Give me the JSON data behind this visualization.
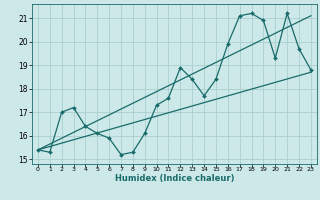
{
  "xlabel": "Humidex (Indice chaleur)",
  "xlim": [
    -0.5,
    23.5
  ],
  "ylim": [
    14.8,
    21.6
  ],
  "yticks": [
    15,
    16,
    17,
    18,
    19,
    20,
    21
  ],
  "xticks": [
    0,
    1,
    2,
    3,
    4,
    5,
    6,
    7,
    8,
    9,
    10,
    11,
    12,
    13,
    14,
    15,
    16,
    17,
    18,
    19,
    20,
    21,
    22,
    23
  ],
  "bg_color": "#cce8e8",
  "grid_color": "#aacfcf",
  "line_color": "#1a6b6b",
  "line1_x": [
    0,
    1,
    2,
    3,
    4,
    5,
    6,
    7,
    8,
    9,
    10,
    11,
    12,
    13,
    14,
    15,
    16,
    17,
    18,
    19,
    20,
    21,
    22,
    23
  ],
  "line1_y": [
    15.4,
    15.3,
    17.0,
    17.2,
    16.4,
    16.1,
    15.9,
    15.2,
    15.3,
    16.1,
    17.3,
    17.6,
    18.9,
    18.4,
    17.7,
    18.4,
    19.9,
    21.1,
    21.2,
    20.9,
    19.3,
    21.2,
    19.7,
    18.8
  ],
  "trend1_x": [
    0,
    23
  ],
  "trend1_y": [
    15.4,
    18.7
  ],
  "trend2_x": [
    0,
    23
  ],
  "trend2_y": [
    15.4,
    21.1
  ]
}
